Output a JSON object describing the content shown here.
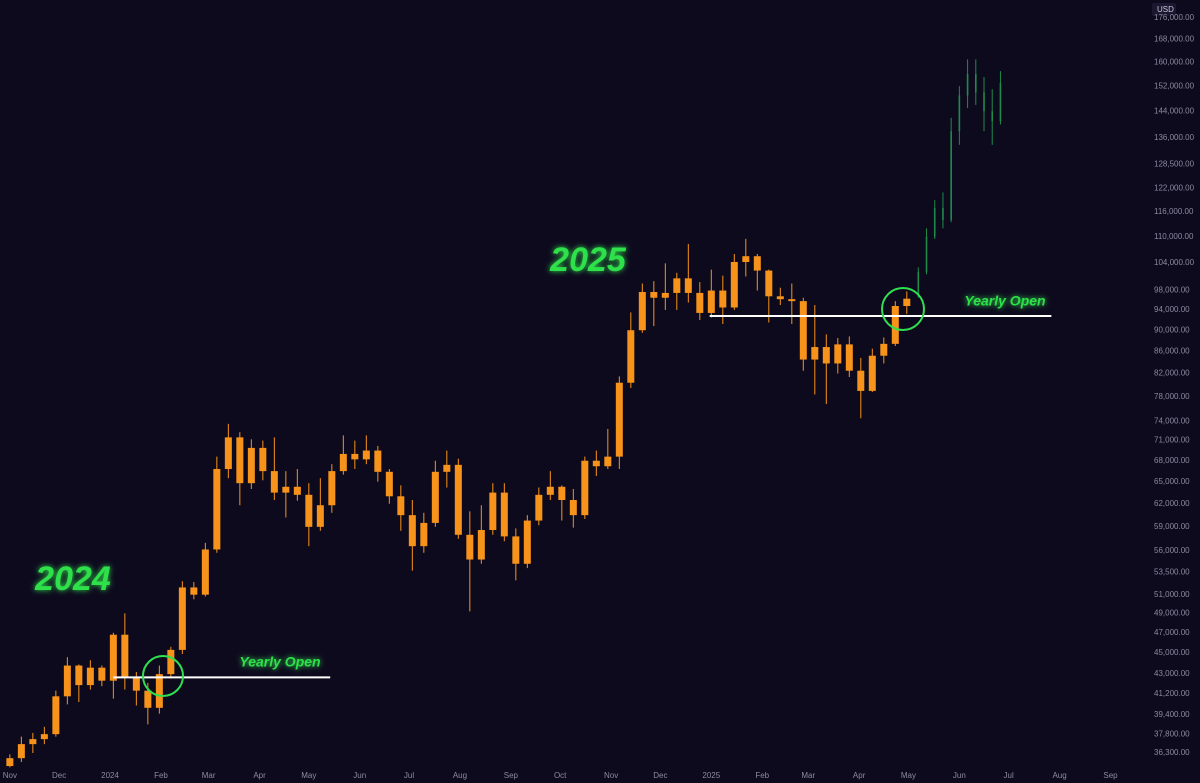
{
  "chart_data": {
    "type": "candlestick",
    "currency": "USD",
    "log_scale": true,
    "grid": true,
    "color": "#f7931a",
    "xlim": [
      -6,
      691
    ],
    "ylim": [
      35150,
      182900
    ],
    "xticks": [
      {
        "value": 0,
        "label": "Nov"
      },
      {
        "value": 30,
        "label": "Dec"
      },
      {
        "value": 61,
        "label": "2024"
      },
      {
        "value": 92,
        "label": "Feb"
      },
      {
        "value": 121,
        "label": "Mar"
      },
      {
        "value": 152,
        "label": "Apr"
      },
      {
        "value": 182,
        "label": "May"
      },
      {
        "value": 213,
        "label": "Jun"
      },
      {
        "value": 243,
        "label": "Jul"
      },
      {
        "value": 274,
        "label": "Aug"
      },
      {
        "value": 305,
        "label": "Sep"
      },
      {
        "value": 335,
        "label": "Oct"
      },
      {
        "value": 366,
        "label": "Nov"
      },
      {
        "value": 396,
        "label": "Dec"
      },
      {
        "value": 427,
        "label": "2025"
      },
      {
        "value": 458,
        "label": "Feb"
      },
      {
        "value": 486,
        "label": "Mar"
      },
      {
        "value": 517,
        "label": "Apr"
      },
      {
        "value": 547,
        "label": "May"
      },
      {
        "value": 578,
        "label": "Jun"
      },
      {
        "value": 608,
        "label": "Jul"
      },
      {
        "value": 639,
        "label": "Aug"
      },
      {
        "value": 670,
        "label": "Sep"
      }
    ],
    "yticks": [
      {
        "value": 36300,
        "label": "36,300.00"
      },
      {
        "value": 37800,
        "label": "37,800.00"
      },
      {
        "value": 39400,
        "label": "39,400.00"
      },
      {
        "value": 41200,
        "label": "41,200.00"
      },
      {
        "value": 43000,
        "label": "43,000.00"
      },
      {
        "value": 45000,
        "label": "45,000.00"
      },
      {
        "value": 47000,
        "label": "47,000.00"
      },
      {
        "value": 49000,
        "label": "49,000.00"
      },
      {
        "value": 51000,
        "label": "51,000.00"
      },
      {
        "value": 53500,
        "label": "53,500.00"
      },
      {
        "value": 56000,
        "label": "56,000.00"
      },
      {
        "value": 59000,
        "label": "59,000.00"
      },
      {
        "value": 62000,
        "label": "62,000.00"
      },
      {
        "value": 65000,
        "label": "65,000.00"
      },
      {
        "value": 68000,
        "label": "68,000.00"
      },
      {
        "value": 71000,
        "label": "71,000.00"
      },
      {
        "value": 74000,
        "label": "74,000.00"
      },
      {
        "value": 78000,
        "label": "78,000.00"
      },
      {
        "value": 82000,
        "label": "82,000.00"
      },
      {
        "value": 86000,
        "label": "86,000.00"
      },
      {
        "value": 90000,
        "label": "90,000.00"
      },
      {
        "value": 94000,
        "label": "94,000.00"
      },
      {
        "value": 98000,
        "label": "98,000.00"
      },
      {
        "value": 104000,
        "label": "104,000.00"
      },
      {
        "value": 110000,
        "label": "110,000.00"
      },
      {
        "value": 116000,
        "label": "116,000.00"
      },
      {
        "value": 122000,
        "label": "122,000.00"
      },
      {
        "value": 128500,
        "label": "128,500.00"
      },
      {
        "value": 136000,
        "label": "136,000.00"
      },
      {
        "value": 144000,
        "label": "144,000.00"
      },
      {
        "value": 152000,
        "label": "152,000.00"
      },
      {
        "value": 160000,
        "label": "160,000.00"
      },
      {
        "value": 168000,
        "label": "168,000.00"
      },
      {
        "value": 176000,
        "label": "176,000.00"
      }
    ],
    "x": [
      0,
      7,
      14,
      21,
      28,
      35,
      42,
      49,
      56,
      63,
      70,
      77,
      84,
      91,
      98,
      105,
      112,
      119,
      126,
      133,
      140,
      147,
      154,
      161,
      168,
      175,
      182,
      189,
      196,
      203,
      210,
      217,
      224,
      231,
      238,
      245,
      252,
      259,
      266,
      273,
      280,
      287,
      294,
      301,
      308,
      315,
      322,
      329,
      336,
      343,
      350,
      357,
      364,
      371,
      378,
      385,
      392,
      399,
      406,
      413,
      420,
      427,
      434,
      441,
      448,
      455,
      462,
      469,
      476,
      483,
      490,
      497,
      504,
      511,
      518,
      525,
      532,
      539,
      546
    ],
    "open": [
      35300,
      35900,
      37000,
      37400,
      37800,
      41000,
      43800,
      42000,
      43600,
      42400,
      46800,
      42700,
      41500,
      40000,
      43000,
      45300,
      51800,
      51000,
      56200,
      66800,
      71500,
      64800,
      69900,
      66500,
      63500,
      64300,
      63200,
      59000,
      61800,
      66500,
      69000,
      68200,
      69500,
      66400,
      63000,
      60500,
      56600,
      59500,
      66400,
      67400,
      58000,
      55000,
      58600,
      63500,
      57800,
      54500,
      59800,
      63200,
      64300,
      62500,
      60500,
      68000,
      67200,
      68600,
      80400,
      90000,
      97700,
      96500,
      97500,
      100600,
      97500,
      93400,
      98000,
      94500,
      104200,
      105500,
      102300,
      96800,
      96200,
      95800,
      84500,
      86800,
      83800,
      87300,
      82500,
      79000,
      85200,
      87400,
      94800
    ],
    "high": [
      36200,
      37600,
      37900,
      38400,
      41500,
      44600,
      43900,
      44300,
      43800,
      47000,
      49000,
      43200,
      42200,
      43800,
      45600,
      52500,
      52400,
      57000,
      68600,
      73600,
      72300,
      71200,
      71000,
      71500,
      66500,
      66800,
      64800,
      65500,
      67500,
      71800,
      71000,
      71800,
      70200,
      66800,
      64500,
      62500,
      60800,
      68000,
      69500,
      68300,
      61000,
      61800,
      64800,
      64800,
      58800,
      60500,
      64200,
      66500,
      64500,
      64000,
      68600,
      69500,
      72800,
      81500,
      93500,
      99500,
      100000,
      103900,
      101800,
      108300,
      99800,
      102500,
      101200,
      106000,
      109500,
      106000,
      102500,
      98600,
      99500,
      96500,
      95000,
      89200,
      88500,
      88800,
      84800,
      86500,
      88600,
      95800,
      97800
    ],
    "low": [
      35200,
      35600,
      36300,
      37000,
      37600,
      40300,
      40500,
      41600,
      41900,
      40800,
      41600,
      40200,
      38600,
      39500,
      42600,
      44900,
      50500,
      50800,
      55800,
      65500,
      61800,
      64000,
      65200,
      62500,
      60200,
      62400,
      56600,
      58500,
      60800,
      66000,
      66800,
      67500,
      65000,
      62000,
      58500,
      53700,
      55800,
      59000,
      64200,
      57500,
      49200,
      54500,
      58000,
      57200,
      52600,
      54000,
      59200,
      62500,
      59800,
      58900,
      60000,
      65800,
      66800,
      66800,
      79500,
      89500,
      90800,
      94000,
      94000,
      95500,
      92000,
      92500,
      91200,
      94000,
      101000,
      98000,
      91500,
      95000,
      91200,
      82500,
      78400,
      76800,
      82000,
      81400,
      74500,
      78800,
      83800,
      87000,
      93200
    ],
    "close": [
      35900,
      37000,
      37400,
      37800,
      41000,
      43800,
      42000,
      43600,
      42400,
      46800,
      42700,
      41500,
      40000,
      43000,
      45300,
      51800,
      51000,
      56200,
      66800,
      71500,
      64800,
      69900,
      66500,
      63500,
      64300,
      63200,
      59000,
      61800,
      66500,
      69000,
      68200,
      69500,
      66400,
      63000,
      60500,
      56600,
      59500,
      66400,
      67400,
      58000,
      55000,
      58600,
      63500,
      57800,
      54500,
      59800,
      63200,
      64300,
      62500,
      60500,
      68000,
      67200,
      68600,
      80400,
      90000,
      97700,
      96500,
      97500,
      100600,
      97500,
      93400,
      98000,
      94500,
      104200,
      105500,
      102300,
      96800,
      96200,
      95800,
      84500,
      86800,
      83800,
      87300,
      82500,
      79000,
      85200,
      87400,
      94800,
      96300
    ],
    "projection": {
      "color": "#1f8a4a",
      "x": [
        553,
        558,
        563,
        568,
        573,
        578,
        583,
        588,
        593,
        598,
        603
      ],
      "open": [
        97000,
        102000,
        110000,
        117000,
        114000,
        138000,
        149000,
        156000,
        150000,
        144000,
        141000
      ],
      "high": [
        103000,
        112000,
        119000,
        121000,
        142000,
        152000,
        161000,
        161000,
        155000,
        151000,
        157000
      ],
      "low": [
        96500,
        101500,
        109500,
        112000,
        113500,
        134000,
        145000,
        146000,
        138000,
        134000,
        140000
      ],
      "close": [
        102000,
        110000,
        117000,
        114000,
        138000,
        149000,
        156000,
        150000,
        144000,
        141000,
        153000
      ]
    },
    "annotations": [
      "2024",
      "2025"
    ],
    "reference_lines": [
      {
        "label": "Yearly Open",
        "value": 42700,
        "x": [
          63,
          195
        ]
      },
      {
        "label": "Yearly Open",
        "value": 92800,
        "x": [
          426,
          634
        ]
      }
    ]
  }
}
